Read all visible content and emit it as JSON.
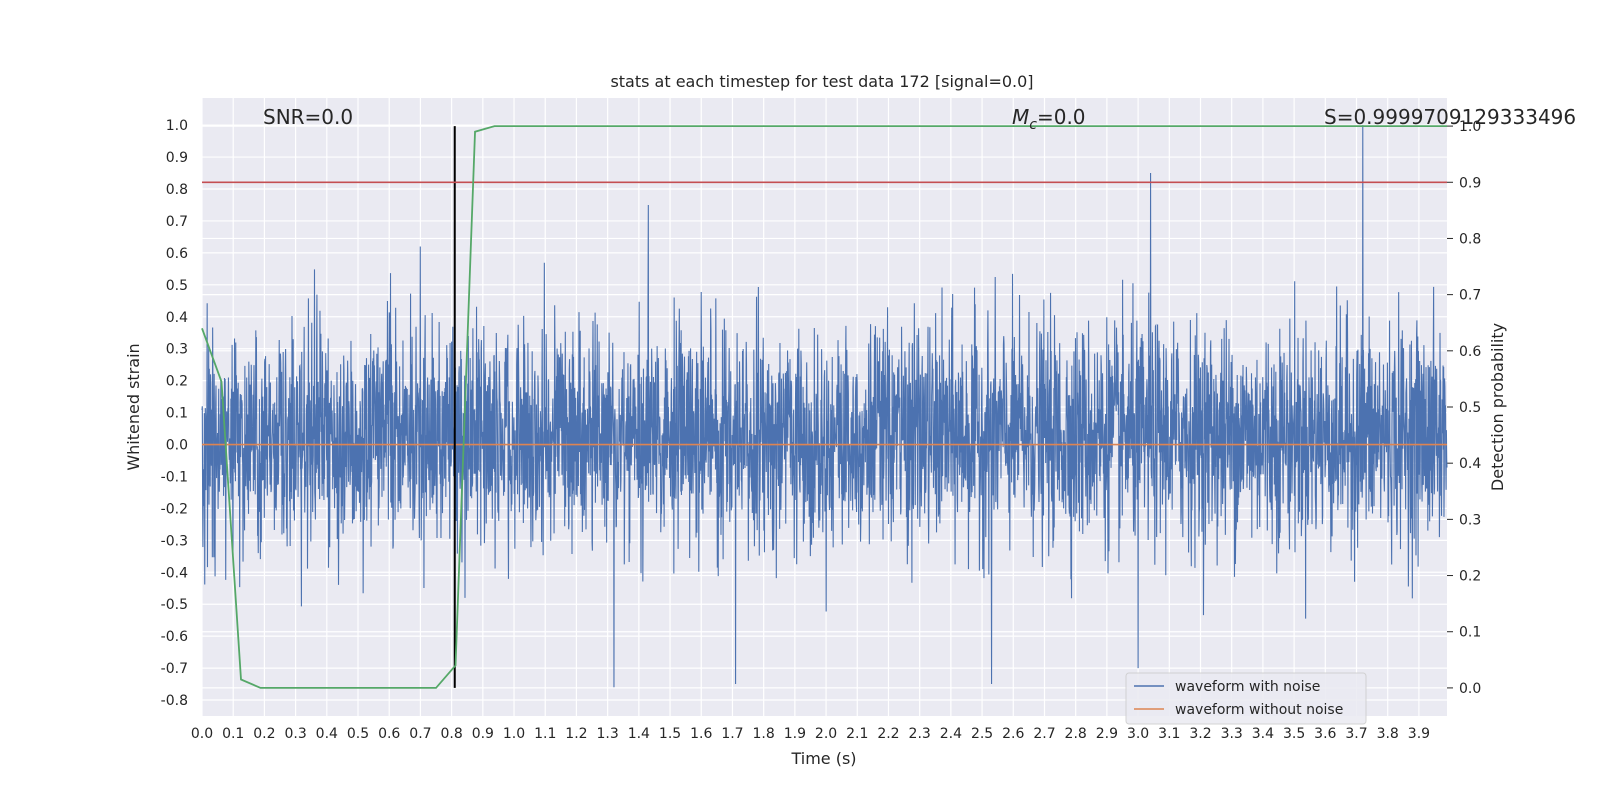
{
  "chart_data": {
    "type": "line",
    "title": "stats at each timestep for test data 172 [signal=0.0]",
    "xlabel": "Time (s)",
    "ylabel": "Whitened strain",
    "y2label": "Detection probability",
    "xlim": [
      0.0,
      3.99
    ],
    "ylim": [
      -0.85,
      1.085
    ],
    "y2lim": [
      -0.05,
      1.05
    ],
    "x_ticks": [
      "0.0",
      "0.1",
      "0.2",
      "0.3",
      "0.4",
      "0.5",
      "0.6",
      "0.7",
      "0.8",
      "0.9",
      "1.0",
      "1.1",
      "1.2",
      "1.3",
      "1.4",
      "1.5",
      "1.6",
      "1.7",
      "1.8",
      "1.9",
      "2.0",
      "2.1",
      "2.2",
      "2.3",
      "2.4",
      "2.5",
      "2.6",
      "2.7",
      "2.8",
      "2.9",
      "3.0",
      "3.1",
      "3.2",
      "3.3",
      "3.4",
      "3.5",
      "3.6",
      "3.7",
      "3.8",
      "3.9"
    ],
    "y_ticks": [
      "-0.8",
      "-0.7",
      "-0.6",
      "-0.5",
      "-0.4",
      "-0.3",
      "-0.2",
      "-0.1",
      "0.0",
      "0.1",
      "0.2",
      "0.3",
      "0.4",
      "0.5",
      "0.6",
      "0.7",
      "0.8",
      "0.9",
      "1.0"
    ],
    "y2_ticks": [
      "0.0",
      "0.1",
      "0.2",
      "0.3",
      "0.4",
      "0.5",
      "0.6",
      "0.7",
      "0.8",
      "0.9",
      "1.0"
    ],
    "grid": true,
    "legend_placement": "lower-right",
    "annotations": {
      "snr": "SNR=0.0",
      "mc": "=0.0",
      "mc_symbol": "M",
      "mc_sub": "c",
      "s": "S=0.9999709129333496"
    },
    "series": [
      {
        "name": "waveform with noise",
        "color": "#4c72b0",
        "axis": "left",
        "note": "dense whitened noise trace, amplitude mostly within [-0.4, 0.5]",
        "peaks": [
          {
            "x": 3.04,
            "y": 0.85
          },
          {
            "x": 3.72,
            "y": 1.0
          },
          {
            "x": 1.43,
            "y": 0.75
          },
          {
            "x": 0.7,
            "y": 0.62
          },
          {
            "x": 1.32,
            "y": -0.76
          },
          {
            "x": 2.53,
            "y": -0.75
          },
          {
            "x": 1.71,
            "y": -0.75
          },
          {
            "x": 3.0,
            "y": -0.7
          }
        ]
      },
      {
        "name": "waveform without noise",
        "color": "#dd8452",
        "axis": "left",
        "x": [
          0.0,
          3.99
        ],
        "y": [
          0.0,
          0.0
        ]
      },
      {
        "name": "detection probability",
        "color": "#55a868",
        "axis": "right",
        "x": [
          0.0,
          0.0625,
          0.125,
          0.1875,
          0.25,
          0.3125,
          0.375,
          0.4375,
          0.5,
          0.5625,
          0.625,
          0.6875,
          0.75,
          0.8125,
          0.875,
          0.9375,
          1.0,
          1.5,
          2.0,
          2.5,
          3.0,
          3.5,
          3.99
        ],
        "y": [
          0.64,
          0.545,
          0.015,
          0.0,
          0.0,
          0.0,
          0.0,
          0.0,
          0.0,
          0.0,
          0.0,
          0.0,
          0.0,
          0.04,
          0.99,
          1.0,
          1.0,
          1.0,
          1.0,
          1.0,
          1.0,
          1.0,
          1.0
        ]
      }
    ],
    "reference_lines": [
      {
        "orientation": "vertical",
        "x": 0.81,
        "y_range": [
          0.0,
          1.0
        ],
        "axis": "right",
        "color": "#000000"
      },
      {
        "orientation": "horizontal",
        "y": 0.9,
        "axis": "right",
        "color": "#c44e52"
      }
    ]
  }
}
